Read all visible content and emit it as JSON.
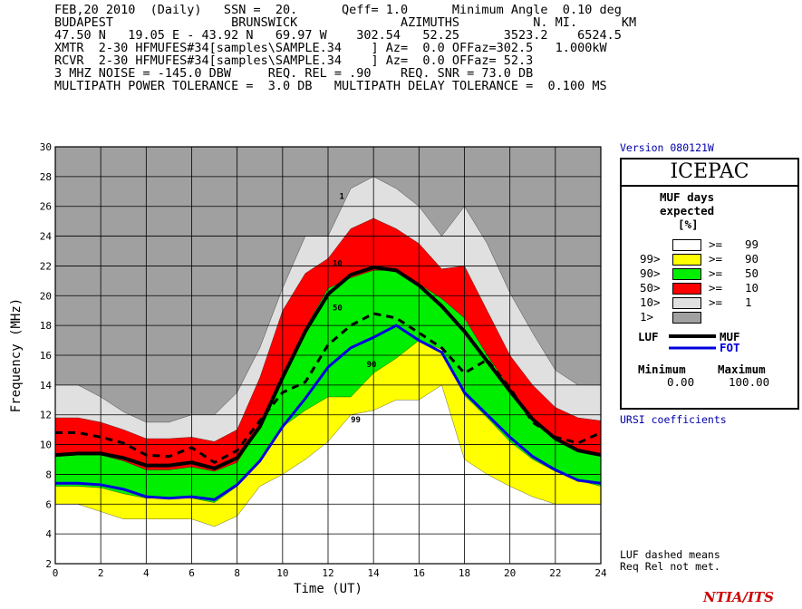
{
  "header": {
    "line1": "FEB,20 2010  (Daily)   SSN =  20.      Qeff= 1.0      Minimum Angle  0.10 deg",
    "line2": "BUDAPEST                BRUNSWICK              AZIMUTHS          N. MI.      KM",
    "line3": "47.50 N   19.05 E - 43.92 N   69.97 W    302.54   52.25      3523.2    6524.5",
    "line4": "XMTR  2-30 HFMUFES#34[samples\\SAMPLE.34    ] Az=  0.0 OFFaz=302.5   1.000kW",
    "line5": "RCVR  2-30 HFMUFES#34[samples\\SAMPLE.34    ] Az=  0.0 OFFaz= 52.3",
    "line6": "3 MHZ NOISE = -145.0 DBW     REQ. REL = .90    REQ. SNR = 73.0 DB",
    "line7": "MULTIPATH POWER TOLERANCE =  3.0 DB   MULTIPATH DELAY TOLERANCE =  0.100 MS"
  },
  "version": "Version 080121W",
  "legend": {
    "title": "ICEPAC",
    "heading1": "MUF days",
    "heading2": "expected",
    "heading3": "[%]",
    "rows": [
      {
        "left": "",
        "op": ">=",
        "val": "99",
        "color": "#ffffff"
      },
      {
        "left": "99>",
        "op": ">=",
        "val": "90",
        "color": "#ffff00"
      },
      {
        "left": "90>",
        "op": ">=",
        "val": "50",
        "color": "#00ee00"
      },
      {
        "left": "50>",
        "op": ">=",
        "val": "10",
        "color": "#ff0000"
      },
      {
        "left": "10>",
        "op": ">=",
        "val": "1",
        "color": "#e0e0e0"
      },
      {
        "left": "1>",
        "op": "",
        "val": "",
        "color": "#a0a0a0"
      }
    ],
    "luf_label": "LUF",
    "muf_label": "MUF",
    "fot_label": "FOT",
    "min_label": "Minimum",
    "max_label": "Maximum",
    "min_value": "0.00",
    "max_value": "100.00"
  },
  "ursi": "URSI coefficients",
  "footnote": "LUF dashed means\nReq Rel not met.",
  "brand": "NTIA/ITS",
  "chart_data": {
    "type": "area",
    "xlabel": "Time (UT)",
    "ylabel": "Frequency (MHz)",
    "xlim": [
      0,
      24
    ],
    "ylim": [
      2,
      30
    ],
    "xticks": [
      "0",
      "2",
      "4",
      "6",
      "8",
      "10",
      "12",
      "14",
      "16",
      "18",
      "20",
      "22",
      "24"
    ],
    "yticks": [
      "2",
      "4",
      "6",
      "8",
      "10",
      "12",
      "14",
      "16",
      "18",
      "20",
      "22",
      "24",
      "26",
      "28",
      "30"
    ],
    "grid": true,
    "x": [
      0,
      1,
      2,
      3,
      4,
      5,
      6,
      7,
      8,
      9,
      10,
      11,
      12,
      13,
      14,
      15,
      16,
      17,
      18,
      19,
      20,
      21,
      22,
      23,
      24
    ],
    "bands": [
      {
        "name": "1%",
        "color": "#e0e0e0",
        "upper": [
          14,
          14,
          13.2,
          12.2,
          11.5,
          11.5,
          12,
          12,
          13.5,
          16.5,
          20.5,
          24,
          24,
          27.2,
          28,
          27.2,
          26,
          24,
          26,
          23.5,
          20.2,
          17.5,
          15,
          14,
          14
        ]
      },
      {
        "name": "10%",
        "color": "#ff0000",
        "upper": [
          11.8,
          11.8,
          11.5,
          11,
          10.4,
          10.4,
          10.5,
          10.2,
          11,
          14.5,
          19,
          21.5,
          22.5,
          24.5,
          25.2,
          24.5,
          23.5,
          21.8,
          22,
          19,
          16,
          14,
          12.5,
          11.8,
          11.6
        ]
      },
      {
        "name": "50%",
        "color": "#00ee00",
        "upper": [
          9.2,
          9.3,
          9.3,
          8.9,
          8.3,
          8.3,
          8.5,
          8.2,
          8.8,
          11.2,
          14.5,
          17.8,
          20.5,
          21.2,
          21.7,
          21.7,
          20.8,
          19.8,
          18.5,
          16,
          13.8,
          11.8,
          10.5,
          9.6,
          9.3
        ]
      },
      {
        "name": "90%",
        "color": "#ffff00",
        "upper": [
          7.2,
          7.2,
          7.1,
          6.7,
          6.4,
          6.4,
          6.4,
          6.1,
          7.2,
          9,
          11.2,
          12.3,
          13.2,
          13.2,
          14.8,
          15.8,
          17,
          16.4,
          13.3,
          11.8,
          10.2,
          9,
          8.2,
          7.6,
          7.2
        ]
      },
      {
        "name": "99%",
        "color": "#ffffff",
        "upper": [
          6,
          6,
          5.5,
          5,
          5,
          5,
          5,
          4.5,
          5.2,
          7.2,
          8,
          9,
          10.2,
          12,
          12.3,
          13,
          13,
          14,
          9,
          8,
          7.2,
          6.5,
          6,
          6,
          6
        ]
      }
    ],
    "curves": [
      {
        "name": "MUF",
        "color": "#000000",
        "width": 4,
        "values": [
          9.3,
          9.4,
          9.4,
          9.1,
          8.6,
          8.6,
          8.8,
          8.4,
          9.1,
          11.2,
          14.5,
          17.6,
          20.1,
          21.4,
          21.9,
          21.7,
          20.7,
          19.3,
          17.6,
          15.6,
          13.6,
          11.7,
          10.4,
          9.6,
          9.3
        ]
      },
      {
        "name": "FOT",
        "color": "#0000dd",
        "width": 3,
        "values": [
          7.4,
          7.4,
          7.3,
          7,
          6.5,
          6.4,
          6.5,
          6.3,
          7.3,
          8.9,
          11.2,
          13.1,
          15.2,
          16.5,
          17.2,
          18,
          17,
          16.2,
          13.5,
          12,
          10.5,
          9.2,
          8.3,
          7.6,
          7.4
        ]
      },
      {
        "name": "LUF",
        "color": "#000000",
        "width": 3,
        "dash": "8,6",
        "values": [
          10.8,
          10.8,
          10.5,
          10.1,
          9.3,
          9.2,
          9.8,
          8.8,
          9.6,
          11.6,
          13.5,
          14.2,
          16.7,
          18,
          18.8,
          18.5,
          17.5,
          16.5,
          14.8,
          15.7,
          13.8,
          11.5,
          10.5,
          10.1,
          10.8
        ]
      }
    ],
    "contour_labels": [
      {
        "text": "1",
        "x": 12.5,
        "y": 26.5
      },
      {
        "text": "10",
        "x": 12.2,
        "y": 22
      },
      {
        "text": "50",
        "x": 12.2,
        "y": 19
      },
      {
        "text": "90",
        "x": 13.7,
        "y": 15.2
      },
      {
        "text": "99",
        "x": 13,
        "y": 11.5
      }
    ]
  }
}
